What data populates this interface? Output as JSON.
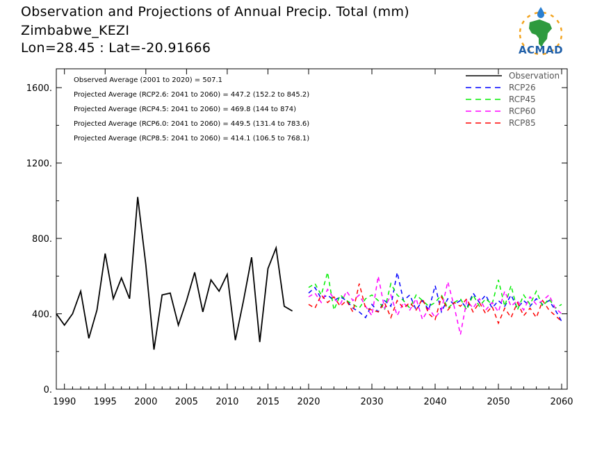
{
  "header": {
    "title": "Observation and Projections of Annual Precip. Total (mm)",
    "location": "Zimbabwe_KEZI",
    "coords": "Lon=28.45 : Lat=-20.91666"
  },
  "logo": {
    "text": "ACMAD",
    "colors": {
      "ring": "#f2a21b",
      "africa": "#2e9a3e",
      "drop": "#2a7fd1",
      "text": "#1f5fa8"
    }
  },
  "chart_data": {
    "type": "line",
    "ylim": [
      0,
      1700
    ],
    "xlim": [
      1989,
      2060
    ],
    "y_ticks": [
      0,
      400,
      800,
      1200,
      1600
    ],
    "y_tick_labels": [
      "0.",
      "400.",
      "800.",
      "1200.",
      "1600."
    ],
    "x_ticks": [
      1990,
      1995,
      2000,
      2005,
      2010,
      2015,
      2020,
      2030,
      2040,
      2050,
      2060
    ],
    "x_tick_labels": [
      "1990",
      "1995",
      "2000",
      "2005",
      "2010",
      "2015",
      "2020",
      "2030",
      "2040",
      "2050",
      "2060"
    ],
    "annotations": [
      "Observed Average (2001 to 2020) = 507.1",
      "Projected Average (RCP2.6: 2041 to 2060) = 447.2 (152.2 to 845.2)",
      "Projected Average (RCP4.5: 2041 to 2060) = 469.8 (144 to 874)",
      "Projected Average (RCP6.0: 2041 to 2060) = 449.5 (131.4 to 783.6)",
      "Projected Average (RCP8.5: 2041 to 2060) = 414.1 (106.5 to 768.1)"
    ],
    "legend_position": "top-right",
    "series": [
      {
        "name": "Observation",
        "color": "#000000",
        "dash": "solid",
        "x": [
          1989,
          1990,
          1991,
          1992,
          1993,
          1994,
          1995,
          1996,
          1997,
          1998,
          1999,
          2000,
          2001,
          2002,
          2003,
          2004,
          2005,
          2006,
          2007,
          2008,
          2009,
          2010,
          2011,
          2012,
          2013,
          2014,
          2015,
          2016,
          2017,
          2018,
          2019,
          2020
        ],
        "values": [
          400,
          340,
          400,
          520,
          270,
          420,
          720,
          480,
          590,
          480,
          1020,
          660,
          210,
          500,
          510,
          340,
          470,
          620,
          410,
          580,
          520,
          610,
          260,
          470,
          700,
          250,
          640,
          750,
          440,
          415,
          null,
          null
        ]
      },
      {
        "name": "RCP26",
        "color": "#0000ff",
        "dash": "dashed",
        "x": [
          2020,
          2021,
          2022,
          2023,
          2024,
          2025,
          2026,
          2027,
          2028,
          2029,
          2030,
          2031,
          2032,
          2033,
          2034,
          2035,
          2036,
          2037,
          2038,
          2039,
          2040,
          2041,
          2042,
          2043,
          2044,
          2045,
          2046,
          2047,
          2048,
          2049,
          2050,
          2051,
          2052,
          2053,
          2054,
          2055,
          2056,
          2057,
          2058,
          2059,
          2060
        ],
        "values": [
          510,
          540,
          480,
          500,
          470,
          490,
          470,
          430,
          410,
          380,
          450,
          410,
          470,
          440,
          620,
          470,
          500,
          420,
          470,
          420,
          550,
          410,
          480,
          450,
          470,
          430,
          510,
          460,
          500,
          430,
          470,
          440,
          500,
          430,
          470,
          440,
          480,
          450,
          470,
          420,
          360
        ]
      },
      {
        "name": "RCP45",
        "color": "#00ee00",
        "dash": "dashed",
        "x": [
          2020,
          2021,
          2022,
          2023,
          2024,
          2025,
          2026,
          2027,
          2028,
          2029,
          2030,
          2031,
          2032,
          2033,
          2034,
          2035,
          2036,
          2037,
          2038,
          2039,
          2040,
          2041,
          2042,
          2043,
          2044,
          2045,
          2046,
          2047,
          2048,
          2049,
          2050,
          2051,
          2052,
          2053,
          2054,
          2055,
          2056,
          2057,
          2058,
          2059,
          2060
        ],
        "values": [
          540,
          560,
          500,
          620,
          420,
          500,
          470,
          450,
          430,
          480,
          500,
          470,
          420,
          560,
          500,
          470,
          430,
          500,
          470,
          440,
          460,
          500,
          430,
          460,
          480,
          420,
          500,
          440,
          480,
          450,
          580,
          440,
          550,
          420,
          500,
          450,
          520,
          440,
          480,
          430,
          450
        ]
      },
      {
        "name": "RCP60",
        "color": "#ff00ff",
        "dash": "dashed",
        "x": [
          2020,
          2021,
          2022,
          2023,
          2024,
          2025,
          2026,
          2027,
          2028,
          2029,
          2030,
          2031,
          2032,
          2033,
          2034,
          2035,
          2036,
          2037,
          2038,
          2039,
          2040,
          2041,
          2042,
          2043,
          2044,
          2045,
          2046,
          2047,
          2048,
          2049,
          2050,
          2051,
          2052,
          2053,
          2054,
          2055,
          2056,
          2057,
          2058,
          2059,
          2060
        ],
        "values": [
          490,
          510,
          460,
          530,
          480,
          450,
          520,
          470,
          500,
          440,
          390,
          600,
          430,
          500,
          390,
          460,
          420,
          480,
          370,
          430,
          380,
          420,
          570,
          440,
          290,
          470,
          430,
          480,
          420,
          460,
          410,
          520,
          440,
          470,
          420,
          490,
          450,
          470,
          500,
          430,
          400
        ]
      },
      {
        "name": "RCP85",
        "color": "#ff0000",
        "dash": "dashed",
        "x": [
          2020,
          2021,
          2022,
          2023,
          2024,
          2025,
          2026,
          2027,
          2028,
          2029,
          2030,
          2031,
          2032,
          2033,
          2034,
          2035,
          2036,
          2037,
          2038,
          2039,
          2040,
          2041,
          2042,
          2043,
          2044,
          2045,
          2046,
          2047,
          2048,
          2049,
          2050,
          2051,
          2052,
          2053,
          2054,
          2055,
          2056,
          2057,
          2058,
          2059,
          2060
        ],
        "values": [
          450,
          430,
          500,
          460,
          490,
          440,
          470,
          410,
          560,
          430,
          420,
          410,
          460,
          380,
          470,
          430,
          460,
          420,
          480,
          400,
          370,
          490,
          420,
          460,
          440,
          480,
          410,
          460,
          400,
          440,
          350,
          430,
          380,
          460,
          390,
          430,
          380,
          470,
          420,
          390,
          360
        ]
      }
    ]
  }
}
